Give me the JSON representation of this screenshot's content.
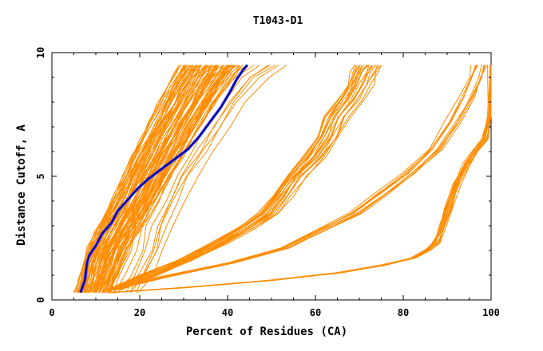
{
  "chart_data": {
    "type": "line",
    "title": "T1043-D1",
    "xlabel": "Percent of Residues (CA)",
    "ylabel": "Distance Cutoff, A",
    "xlim": [
      0,
      100
    ],
    "ylim": [
      0,
      10
    ],
    "x_ticks": [
      0,
      20,
      40,
      60,
      80,
      100
    ],
    "y_ticks": [
      0,
      5,
      10
    ],
    "grid": false,
    "legend": "none",
    "colors": {
      "models": "#ff8c00",
      "highlight": "#00008b",
      "highlight_outline": "#3333ff"
    },
    "highlight_series": {
      "points": [
        [
          6.5,
          0.3
        ],
        [
          7.5,
          0.8
        ],
        [
          8,
          1.5
        ],
        [
          8.5,
          1.8
        ],
        [
          10,
          2.2
        ],
        [
          11.5,
          2.7
        ],
        [
          13.5,
          3.1
        ],
        [
          15,
          3.6
        ],
        [
          17,
          4
        ],
        [
          19.5,
          4.5
        ],
        [
          22,
          4.9
        ],
        [
          25,
          5.3
        ],
        [
          28,
          5.7
        ],
        [
          31,
          6.1
        ],
        [
          33.5,
          6.6
        ],
        [
          36,
          7.2
        ],
        [
          38.5,
          7.8
        ],
        [
          40.5,
          8.4
        ],
        [
          42,
          8.9
        ],
        [
          43.5,
          9.3
        ],
        [
          44.5,
          9.5
        ]
      ]
    },
    "model_groups": [
      {
        "count": 70,
        "base": [
          [
            5,
            0.3
          ],
          [
            6,
            0.8
          ],
          [
            7,
            1.5
          ],
          [
            8,
            2.1
          ],
          [
            10,
            2.8
          ],
          [
            12,
            3.5
          ],
          [
            14,
            4.2
          ],
          [
            16,
            5
          ],
          [
            18,
            5.8
          ],
          [
            20,
            6.5
          ],
          [
            22,
            7.2
          ],
          [
            24,
            7.9
          ],
          [
            26,
            8.6
          ],
          [
            28,
            9.2
          ],
          [
            29,
            9.5
          ]
        ],
        "max_shift": 14
      },
      {
        "count": 14,
        "base": [
          [
            10,
            0.3
          ],
          [
            12,
            1
          ],
          [
            14,
            2
          ],
          [
            15,
            3
          ],
          [
            17,
            4
          ],
          [
            19,
            5
          ],
          [
            22,
            6
          ],
          [
            25,
            7
          ],
          [
            28,
            8
          ],
          [
            32,
            9
          ],
          [
            36,
            9.5
          ]
        ],
        "max_shift": 18
      },
      {
        "count": 20,
        "base": [
          [
            12,
            0.4
          ],
          [
            20,
            1
          ],
          [
            28,
            1.6
          ],
          [
            36,
            2.3
          ],
          [
            42,
            2.9
          ],
          [
            47,
            3.5
          ],
          [
            50,
            4.2
          ],
          [
            53,
            5
          ],
          [
            57,
            5.8
          ],
          [
            60,
            6.6
          ],
          [
            62,
            7.4
          ],
          [
            65,
            8.1
          ],
          [
            67,
            8.7
          ],
          [
            68,
            9.2
          ],
          [
            69,
            9.5
          ]
        ],
        "max_shift": 6
      },
      {
        "count": 10,
        "base": [
          [
            12,
            0.4
          ],
          [
            24,
            0.9
          ],
          [
            40,
            1.5
          ],
          [
            52,
            2.1
          ],
          [
            60,
            2.8
          ],
          [
            68,
            3.5
          ],
          [
            74,
            4.3
          ],
          [
            80,
            5.1
          ],
          [
            86,
            6.1
          ],
          [
            90,
            7.2
          ],
          [
            93,
            8.2
          ],
          [
            95,
            9
          ],
          [
            96,
            9.5
          ]
        ],
        "max_shift": 3
      },
      {
        "count": 14,
        "base": [
          [
            13,
            0.3
          ],
          [
            30,
            0.5
          ],
          [
            50,
            0.8
          ],
          [
            65,
            1.1
          ],
          [
            75,
            1.4
          ],
          [
            82,
            1.7
          ],
          [
            85,
            2
          ],
          [
            87,
            2.3
          ],
          [
            88.5,
            2.9
          ],
          [
            90,
            3.7
          ],
          [
            92,
            4.7
          ],
          [
            94,
            5.5
          ],
          [
            96,
            6
          ],
          [
            98,
            6.5
          ],
          [
            99.5,
            7.4
          ],
          [
            99.9,
            9.5
          ]
        ],
        "max_shift": 1.2
      }
    ]
  }
}
